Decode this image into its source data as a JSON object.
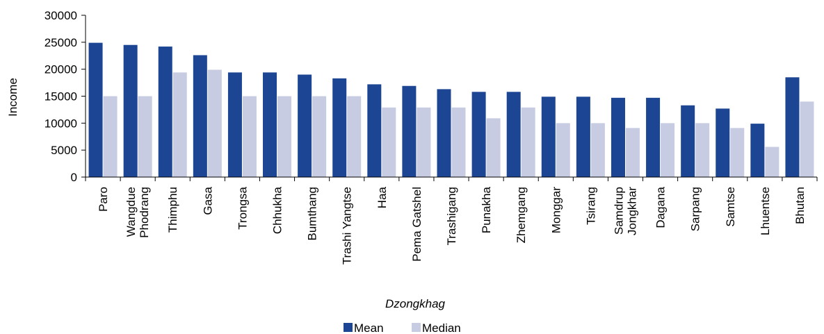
{
  "chart_data": {
    "type": "bar",
    "title": "",
    "xlabel": "Dzongkhag",
    "ylabel": "Income",
    "ylim": [
      0,
      30000
    ],
    "yticks": [
      0,
      5000,
      10000,
      15000,
      20000,
      25000,
      30000
    ],
    "categories": [
      "Paro",
      "Wangdue Phodrang",
      "Thimphu",
      "Gasa",
      "Trongsa",
      "Chhukha",
      "Bumthang",
      "Trashi Yangtse",
      "Haa",
      "Pema Gatshel",
      "Trashigang",
      "Punakha",
      "Zhemgang",
      "Monggar",
      "Tsirang",
      "Samdrup Jongkhar",
      "Dagana",
      "Sarpang",
      "Samtse",
      "Lhuentse",
      "Bhutan"
    ],
    "series": [
      {
        "name": "Mean",
        "color": "#1c4593",
        "values": [
          24900,
          24500,
          24200,
          22600,
          19400,
          19400,
          19000,
          18300,
          17200,
          16900,
          16300,
          15800,
          15800,
          14900,
          14900,
          14700,
          14700,
          13300,
          12700,
          9900,
          18500
        ]
      },
      {
        "name": "Median",
        "color": "#c8cce2",
        "values": [
          15000,
          15000,
          19400,
          19900,
          15000,
          15000,
          15000,
          15000,
          12900,
          12900,
          12900,
          10900,
          12900,
          10000,
          10000,
          9100,
          10000,
          10000,
          9100,
          5600,
          14000
        ]
      }
    ],
    "grid": false,
    "legend_position": "bottom"
  }
}
